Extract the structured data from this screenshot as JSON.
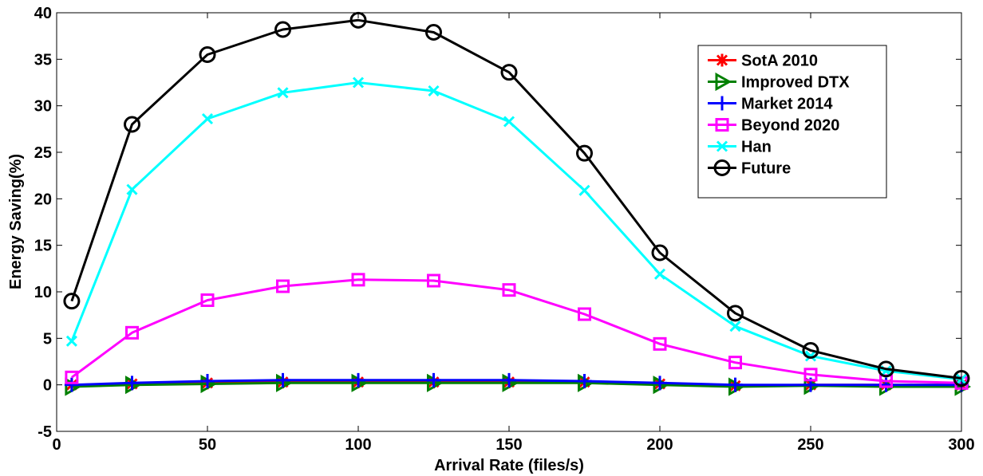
{
  "chart_data": {
    "type": "line",
    "title": "",
    "xlabel": "Arrival Rate (files/s)",
    "ylabel": "Energy Saving(%)",
    "xlim": [
      0,
      300
    ],
    "ylim": [
      -5,
      40
    ],
    "x_ticks": [
      "0",
      "50",
      "100",
      "150",
      "200",
      "250",
      "300"
    ],
    "y_ticks": [
      "-5",
      "0",
      "5",
      "10",
      "15",
      "20",
      "25",
      "30",
      "35",
      "40"
    ],
    "grid": false,
    "legend_position": "top-right",
    "x": [
      5,
      25,
      50,
      75,
      100,
      125,
      150,
      175,
      200,
      225,
      250,
      275,
      300
    ],
    "series": [
      {
        "name": "SotA 2010",
        "color": "#ff0000",
        "marker": "asterisk",
        "values": [
          0,
          0.1,
          0.2,
          0.3,
          0.3,
          0.3,
          0.3,
          0.3,
          0.1,
          -0.1,
          0,
          0,
          0
        ]
      },
      {
        "name": "Improved DTX",
        "color": "#008000",
        "marker": "triangle-right",
        "values": [
          -0.2,
          0,
          0.1,
          0.2,
          0.2,
          0.2,
          0.2,
          0.2,
          0,
          -0.2,
          -0.1,
          -0.2,
          -0.2
        ]
      },
      {
        "name": "Market 2014",
        "color": "#0000ff",
        "marker": "plus",
        "values": [
          0,
          0.2,
          0.4,
          0.5,
          0.5,
          0.5,
          0.5,
          0.4,
          0.2,
          0,
          0,
          0,
          0
        ]
      },
      {
        "name": "Beyond 2020",
        "color": "#ff00ff",
        "marker": "square",
        "values": [
          0.8,
          5.6,
          9.1,
          10.6,
          11.3,
          11.2,
          10.2,
          7.6,
          4.4,
          2.4,
          1.1,
          0.4,
          0.2
        ]
      },
      {
        "name": "Han",
        "color": "#00ffff",
        "marker": "x",
        "values": [
          4.7,
          21,
          28.6,
          31.4,
          32.5,
          31.6,
          28.3,
          20.9,
          11.9,
          6.3,
          3.1,
          1.5,
          0.6
        ]
      },
      {
        "name": "Future",
        "color": "#000000",
        "marker": "circle",
        "values": [
          9,
          28,
          35.5,
          38.2,
          39.2,
          37.9,
          33.6,
          24.9,
          14.2,
          7.7,
          3.7,
          1.7,
          0.7
        ]
      }
    ]
  }
}
